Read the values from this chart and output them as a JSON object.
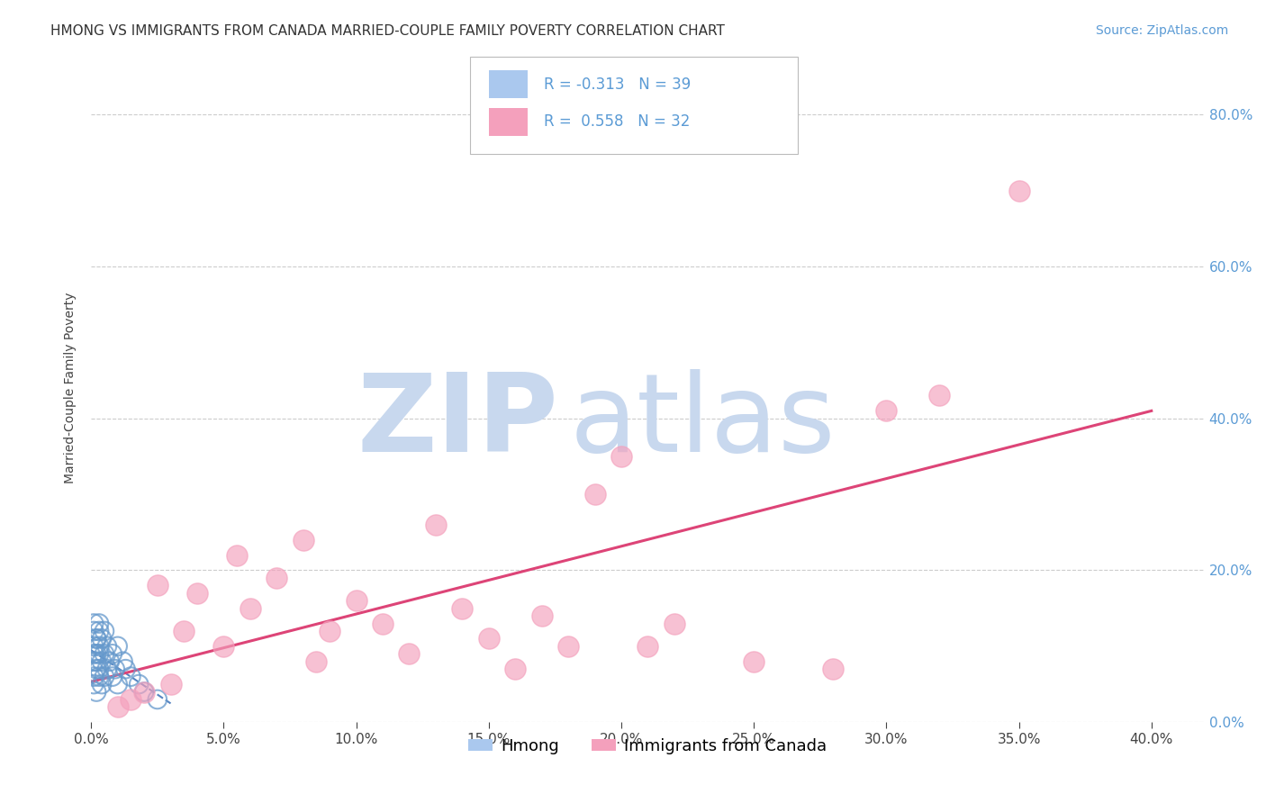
{
  "title": "HMONG VS IMMIGRANTS FROM CANADA MARRIED-COUPLE FAMILY POVERTY CORRELATION CHART",
  "source": "Source: ZipAtlas.com",
  "ylabel": "Married-Couple Family Poverty",
  "xlim": [
    0.0,
    0.42
  ],
  "ylim": [
    0.0,
    0.88
  ],
  "xticks": [
    0.0,
    0.05,
    0.1,
    0.15,
    0.2,
    0.25,
    0.3,
    0.35,
    0.4
  ],
  "yticks": [
    0.0,
    0.2,
    0.4,
    0.6,
    0.8
  ],
  "background_color": "#ffffff",
  "grid_color": "#cccccc",
  "watermark_zip": "ZIP",
  "watermark_atlas": "atlas",
  "watermark_color_zip": "#c8d8ee",
  "watermark_color_atlas": "#c8d8ee",
  "hmong_color": "#aac8ee",
  "canada_color": "#f4a0bc",
  "hmong_edge_color": "#6699cc",
  "canada_edge_color": "#e06080",
  "hmong_line_color": "#4477bb",
  "canada_line_color": "#dd4477",
  "tick_color": "#5b9bd5",
  "title_fontsize": 11,
  "axis_label_fontsize": 10,
  "tick_fontsize": 11,
  "legend_fontsize": 12,
  "source_fontsize": 10,
  "hmong_x": [
    0.001,
    0.001,
    0.001,
    0.001,
    0.001,
    0.002,
    0.002,
    0.002,
    0.002,
    0.002,
    0.003,
    0.003,
    0.003,
    0.003,
    0.003,
    0.003,
    0.004,
    0.004,
    0.004,
    0.005,
    0.005,
    0.005,
    0.006,
    0.006,
    0.007,
    0.008,
    0.008,
    0.009,
    0.01,
    0.01,
    0.012,
    0.013,
    0.015,
    0.018,
    0.02,
    0.025,
    0.001,
    0.002,
    0.001
  ],
  "hmong_y": [
    0.05,
    0.08,
    0.1,
    0.12,
    0.06,
    0.07,
    0.09,
    0.11,
    0.04,
    0.08,
    0.06,
    0.1,
    0.13,
    0.07,
    0.09,
    0.12,
    0.05,
    0.08,
    0.11,
    0.06,
    0.09,
    0.12,
    0.07,
    0.1,
    0.08,
    0.06,
    0.09,
    0.07,
    0.05,
    0.1,
    0.08,
    0.07,
    0.06,
    0.05,
    0.04,
    0.03,
    0.13,
    0.11,
    0.09
  ],
  "canada_x": [
    0.01,
    0.015,
    0.02,
    0.025,
    0.03,
    0.035,
    0.04,
    0.05,
    0.055,
    0.06,
    0.07,
    0.08,
    0.085,
    0.09,
    0.1,
    0.11,
    0.12,
    0.13,
    0.14,
    0.15,
    0.16,
    0.17,
    0.18,
    0.19,
    0.2,
    0.21,
    0.22,
    0.25,
    0.28,
    0.3,
    0.32,
    0.35
  ],
  "canada_y": [
    0.02,
    0.03,
    0.04,
    0.18,
    0.05,
    0.12,
    0.17,
    0.1,
    0.22,
    0.15,
    0.19,
    0.24,
    0.08,
    0.12,
    0.16,
    0.13,
    0.09,
    0.26,
    0.15,
    0.11,
    0.07,
    0.14,
    0.1,
    0.3,
    0.35,
    0.1,
    0.13,
    0.08,
    0.07,
    0.41,
    0.43,
    0.7
  ]
}
